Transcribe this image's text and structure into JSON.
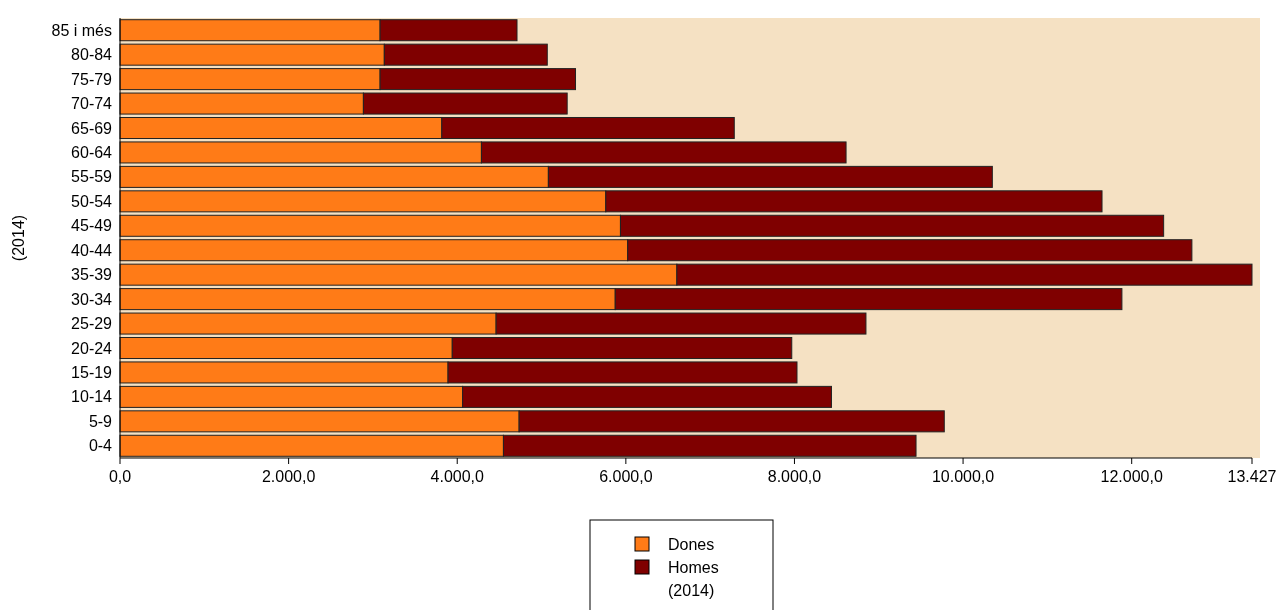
{
  "chart_data": {
    "type": "bar",
    "orientation": "horizontal",
    "stacked": true,
    "ylabel": "(2014)",
    "legend_title": "(2014)",
    "legend": "bottom",
    "grid": false,
    "categories": [
      "85 i més",
      "80-84",
      "75-79",
      "70-74",
      "65-69",
      "60-64",
      "55-59",
      "50-54",
      "45-49",
      "40-44",
      "35-39",
      "30-34",
      "25-29",
      "20-24",
      "15-19",
      "10-14",
      "5-9",
      "0-4"
    ],
    "series": [
      {
        "name": "Dones",
        "color": "#ff7b17",
        "values": [
          3085,
          3135,
          3085,
          2887,
          3817,
          4287,
          5081,
          5762,
          5936,
          6022,
          6605,
          5874,
          4461,
          3941,
          3891,
          4064,
          4734,
          4548
        ]
      },
      {
        "name": "Homes",
        "color": "#7f0000",
        "values": [
          1624,
          1933,
          2318,
          2417,
          3469,
          4325,
          5266,
          5886,
          6443,
          6692,
          6822,
          6010,
          4387,
          4027,
          4139,
          4375,
          5043,
          4894
        ]
      }
    ],
    "xlim": [
      0,
      13427
    ],
    "xticks": [
      {
        "value": 0,
        "label": "0,0"
      },
      {
        "value": 2000,
        "label": "2.000,0"
      },
      {
        "value": 4000,
        "label": "4.000,0"
      },
      {
        "value": 6000,
        "label": "6.000,0"
      },
      {
        "value": 8000,
        "label": "8.000,0"
      },
      {
        "value": 10000,
        "label": "10.000,0"
      },
      {
        "value": 12000,
        "label": "12.000,0"
      },
      {
        "value": 13427,
        "label": "13.427"
      }
    ]
  }
}
